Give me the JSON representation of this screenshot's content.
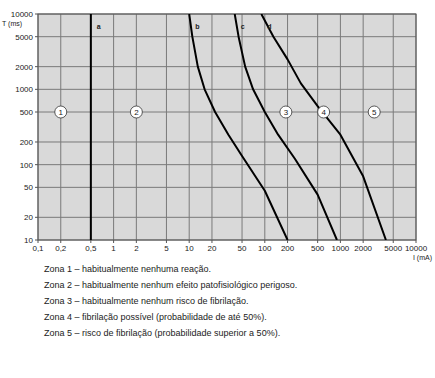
{
  "chart_data": {
    "type": "line",
    "log": true,
    "grid": true,
    "x_label": "I (mA)",
    "y_label": "T (ms)",
    "xlim": [
      0.1,
      10000
    ],
    "ylim": [
      10,
      10000
    ],
    "xticks": [
      {
        "value": 0.1,
        "label": "0,1"
      },
      {
        "value": 0.2,
        "label": "0,2"
      },
      {
        "value": 0.5,
        "label": "0,5"
      },
      1,
      2,
      5,
      10,
      20,
      50,
      100,
      200,
      500,
      1000,
      2000,
      5000,
      10000
    ],
    "yticks": [
      10,
      20,
      50,
      100,
      200,
      500,
      1000,
      2000,
      5000,
      10000
    ],
    "series": [
      {
        "name": "a",
        "color": "#000000",
        "x": [
          0.5,
          0.5
        ],
        "values": [
          10,
          10000
        ]
      },
      {
        "name": "b",
        "color": "#000000",
        "x": [
          10,
          11,
          13,
          16,
          22,
          33,
          50,
          100,
          200
        ],
        "values": [
          10000,
          5000,
          2000,
          1000,
          500,
          250,
          130,
          45,
          10
        ]
      },
      {
        "name": "c",
        "color": "#000000",
        "x": [
          40,
          45,
          55,
          70,
          100,
          150,
          250,
          500,
          900
        ],
        "values": [
          10000,
          5000,
          2000,
          1000,
          500,
          250,
          120,
          40,
          10
        ]
      },
      {
        "name": "d",
        "color": "#000000",
        "x": [
          90,
          130,
          200,
          300,
          500,
          1000,
          2000,
          4000
        ],
        "values": [
          10000,
          5000,
          2500,
          1200,
          600,
          250,
          70,
          10
        ]
      }
    ],
    "zones": [
      {
        "label": "1",
        "x": 0.2,
        "y": 500,
        "text": "Zona 1 – habitualmente nenhuma reação."
      },
      {
        "label": "2",
        "x": 2,
        "y": 500,
        "text": "Zona 2 – habitualmente nenhum efeito patofisiológico perigoso."
      },
      {
        "label": "3",
        "x": 190,
        "y": 500,
        "text": "Zona 3 – habitualmente nenhum risco de fibrilação."
      },
      {
        "label": "4",
        "x": 600,
        "y": 500,
        "text": "Zona 4 – fibrilação possível (probabilidade de até 50%)."
      },
      {
        "label": "5",
        "x": 2800,
        "y": 500,
        "text": "Zona 5 – risco de fibrilação (probabilidade superior a 50%)."
      }
    ]
  }
}
